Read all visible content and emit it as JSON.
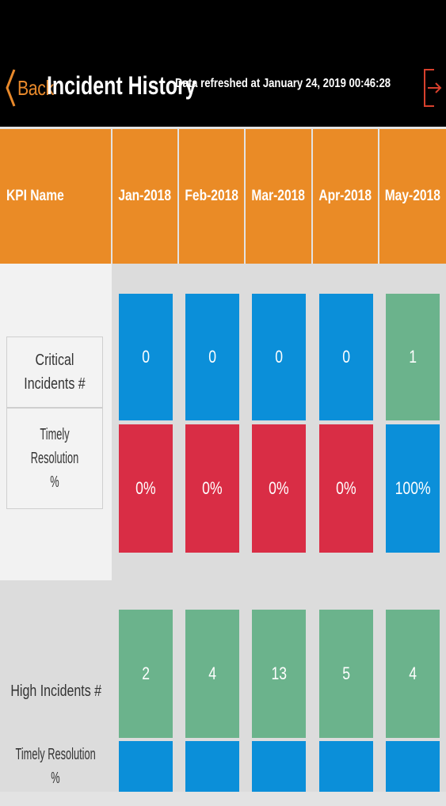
{
  "header": {
    "back_label": "Back",
    "title": "Incident History",
    "refreshed": "Data refreshed at January 24, 2019 00:46:28"
  },
  "table": {
    "kpi_header": "KPI Name",
    "months": [
      "Jan-2018",
      "Feb-2018",
      "Mar-2018",
      "Apr-2018",
      "May-2018"
    ],
    "sections": [
      {
        "count_label": "Critical Incidents #",
        "resolution_label_line1": "Timely Resolution",
        "resolution_label_line2": "%",
        "counts": [
          "0",
          "0",
          "0",
          "0",
          "1"
        ],
        "resolutions": [
          "0%",
          "0%",
          "0%",
          "0%",
          "100%"
        ]
      },
      {
        "count_label": "High Incidents #",
        "resolution_label_line1": "Timely Resolution",
        "resolution_label_line2": "%",
        "counts": [
          "2",
          "4",
          "13",
          "5",
          "4"
        ],
        "resolutions": [
          "",
          "",
          "",
          "",
          ""
        ]
      }
    ]
  },
  "colors": {
    "header_orange": "#ea8b26",
    "blue": "#0b8fd9",
    "red": "#d92d45",
    "green": "#6bb38c"
  }
}
